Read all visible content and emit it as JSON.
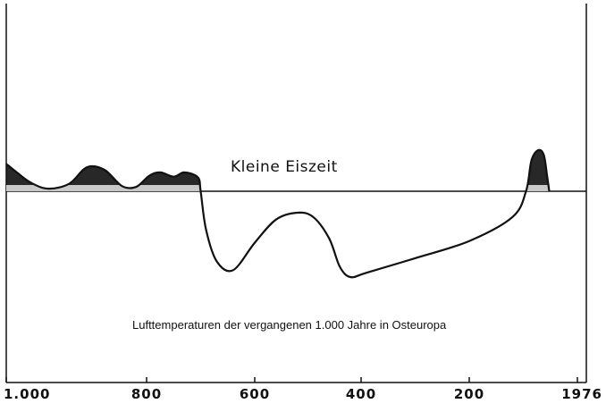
{
  "chart_data": {
    "type": "line",
    "title": "",
    "xlabel": "",
    "ylabel": "",
    "x_tick_labels": [
      "1.000",
      "800",
      "600",
      "400",
      "200",
      "1976"
    ],
    "annotation": "Kleine Eiszeit",
    "caption": "Lufttemperaturen der vergangenen 1.000 Jahre in Osteuropa",
    "grid": false,
    "colors": {
      "line": "#111111",
      "warm_fill": "#111111",
      "background": "#ffffff"
    },
    "series": [
      {
        "points": [
          {
            "x": 1000,
            "y": 0.32
          },
          {
            "x": 985,
            "y": 0.22
          },
          {
            "x": 965,
            "y": 0.1
          },
          {
            "x": 940,
            "y": 0.03
          },
          {
            "x": 910,
            "y": 0.09
          },
          {
            "x": 885,
            "y": 0.28
          },
          {
            "x": 860,
            "y": 0.25
          },
          {
            "x": 835,
            "y": 0.06
          },
          {
            "x": 815,
            "y": 0.05
          },
          {
            "x": 795,
            "y": 0.18
          },
          {
            "x": 775,
            "y": 0.22
          },
          {
            "x": 750,
            "y": 0.17
          },
          {
            "x": 730,
            "y": 0.22
          },
          {
            "x": 705,
            "y": 0.16
          },
          {
            "x": 700,
            "y": 0.0
          },
          {
            "x": 690,
            "y": -0.45
          },
          {
            "x": 670,
            "y": -0.82
          },
          {
            "x": 640,
            "y": -0.92
          },
          {
            "x": 600,
            "y": -0.6
          },
          {
            "x": 560,
            "y": -0.33
          },
          {
            "x": 520,
            "y": -0.25
          },
          {
            "x": 490,
            "y": -0.3
          },
          {
            "x": 460,
            "y": -0.55
          },
          {
            "x": 440,
            "y": -0.88
          },
          {
            "x": 420,
            "y": -1.0
          },
          {
            "x": 390,
            "y": -0.95
          },
          {
            "x": 300,
            "y": -0.78
          },
          {
            "x": 200,
            "y": -0.58
          },
          {
            "x": 120,
            "y": -0.3
          },
          {
            "x": 95,
            "y": 0.0
          },
          {
            "x": 85,
            "y": 0.36
          },
          {
            "x": 72,
            "y": 0.48
          },
          {
            "x": 62,
            "y": 0.42
          },
          {
            "x": 56,
            "y": 0.18
          },
          {
            "x": 52,
            "y": 0.0
          }
        ]
      }
    ],
    "ylim": [
      -1.1,
      0.6
    ]
  }
}
